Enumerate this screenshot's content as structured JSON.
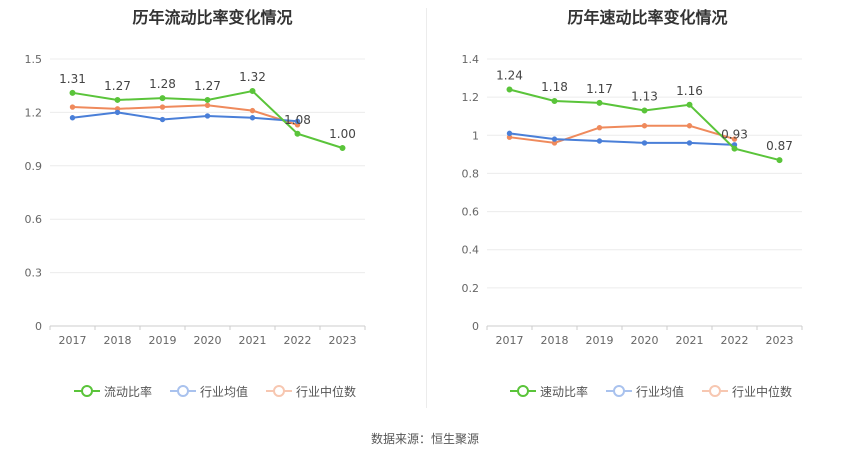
{
  "chart_data": [
    {
      "type": "line",
      "title": "历年流动比率变化情况",
      "categories": [
        "2017",
        "2018",
        "2019",
        "2020",
        "2021",
        "2022",
        "2023"
      ],
      "ylim": [
        0,
        1.5
      ],
      "yticks": [
        "0",
        "0.3",
        "0.6",
        "0.9",
        "1.2",
        "1.5"
      ],
      "ytick_values": [
        0,
        0.3,
        0.6,
        0.9,
        1.2,
        1.5
      ],
      "series": [
        {
          "name": "流动比率",
          "color": "#5ac43a",
          "values": [
            1.31,
            1.27,
            1.28,
            1.27,
            1.32,
            1.08,
            1.0
          ],
          "labels": [
            "1.31",
            "1.27",
            "1.28",
            "1.27",
            "1.32",
            "1.08",
            "1.00"
          ]
        },
        {
          "name": "行业均值",
          "color": "#4a7fd8",
          "values": [
            1.17,
            1.2,
            1.16,
            1.18,
            1.17,
            1.15,
            null
          ]
        },
        {
          "name": "行业中位数",
          "color": "#ef8a5c",
          "values": [
            1.23,
            1.22,
            1.23,
            1.24,
            1.21,
            1.13,
            null
          ]
        }
      ],
      "grid": true,
      "legend": "bottom"
    },
    {
      "type": "line",
      "title": "历年速动比率变化情况",
      "categories": [
        "2017",
        "2018",
        "2019",
        "2020",
        "2021",
        "2022",
        "2023"
      ],
      "ylim": [
        0,
        1.4
      ],
      "yticks": [
        "0",
        "0.2",
        "0.4",
        "0.6",
        "0.8",
        "1",
        "1.2",
        "1.4"
      ],
      "ytick_values": [
        0,
        0.2,
        0.4,
        0.6,
        0.8,
        1.0,
        1.2,
        1.4
      ],
      "series": [
        {
          "name": "速动比率",
          "color": "#5ac43a",
          "values": [
            1.24,
            1.18,
            1.17,
            1.13,
            1.16,
            0.93,
            0.87
          ],
          "labels": [
            "1.24",
            "1.18",
            "1.17",
            "1.13",
            "1.16",
            "0.93",
            "0.87"
          ]
        },
        {
          "name": "行业均值",
          "color": "#4a7fd8",
          "values": [
            1.01,
            0.98,
            0.97,
            0.96,
            0.96,
            0.95,
            null
          ]
        },
        {
          "name": "行业中位数",
          "color": "#ef8a5c",
          "values": [
            0.99,
            0.96,
            1.04,
            1.05,
            1.05,
            0.98,
            null
          ]
        }
      ],
      "grid": true,
      "legend": "bottom"
    }
  ],
  "footer": "数据来源：恒生聚源"
}
